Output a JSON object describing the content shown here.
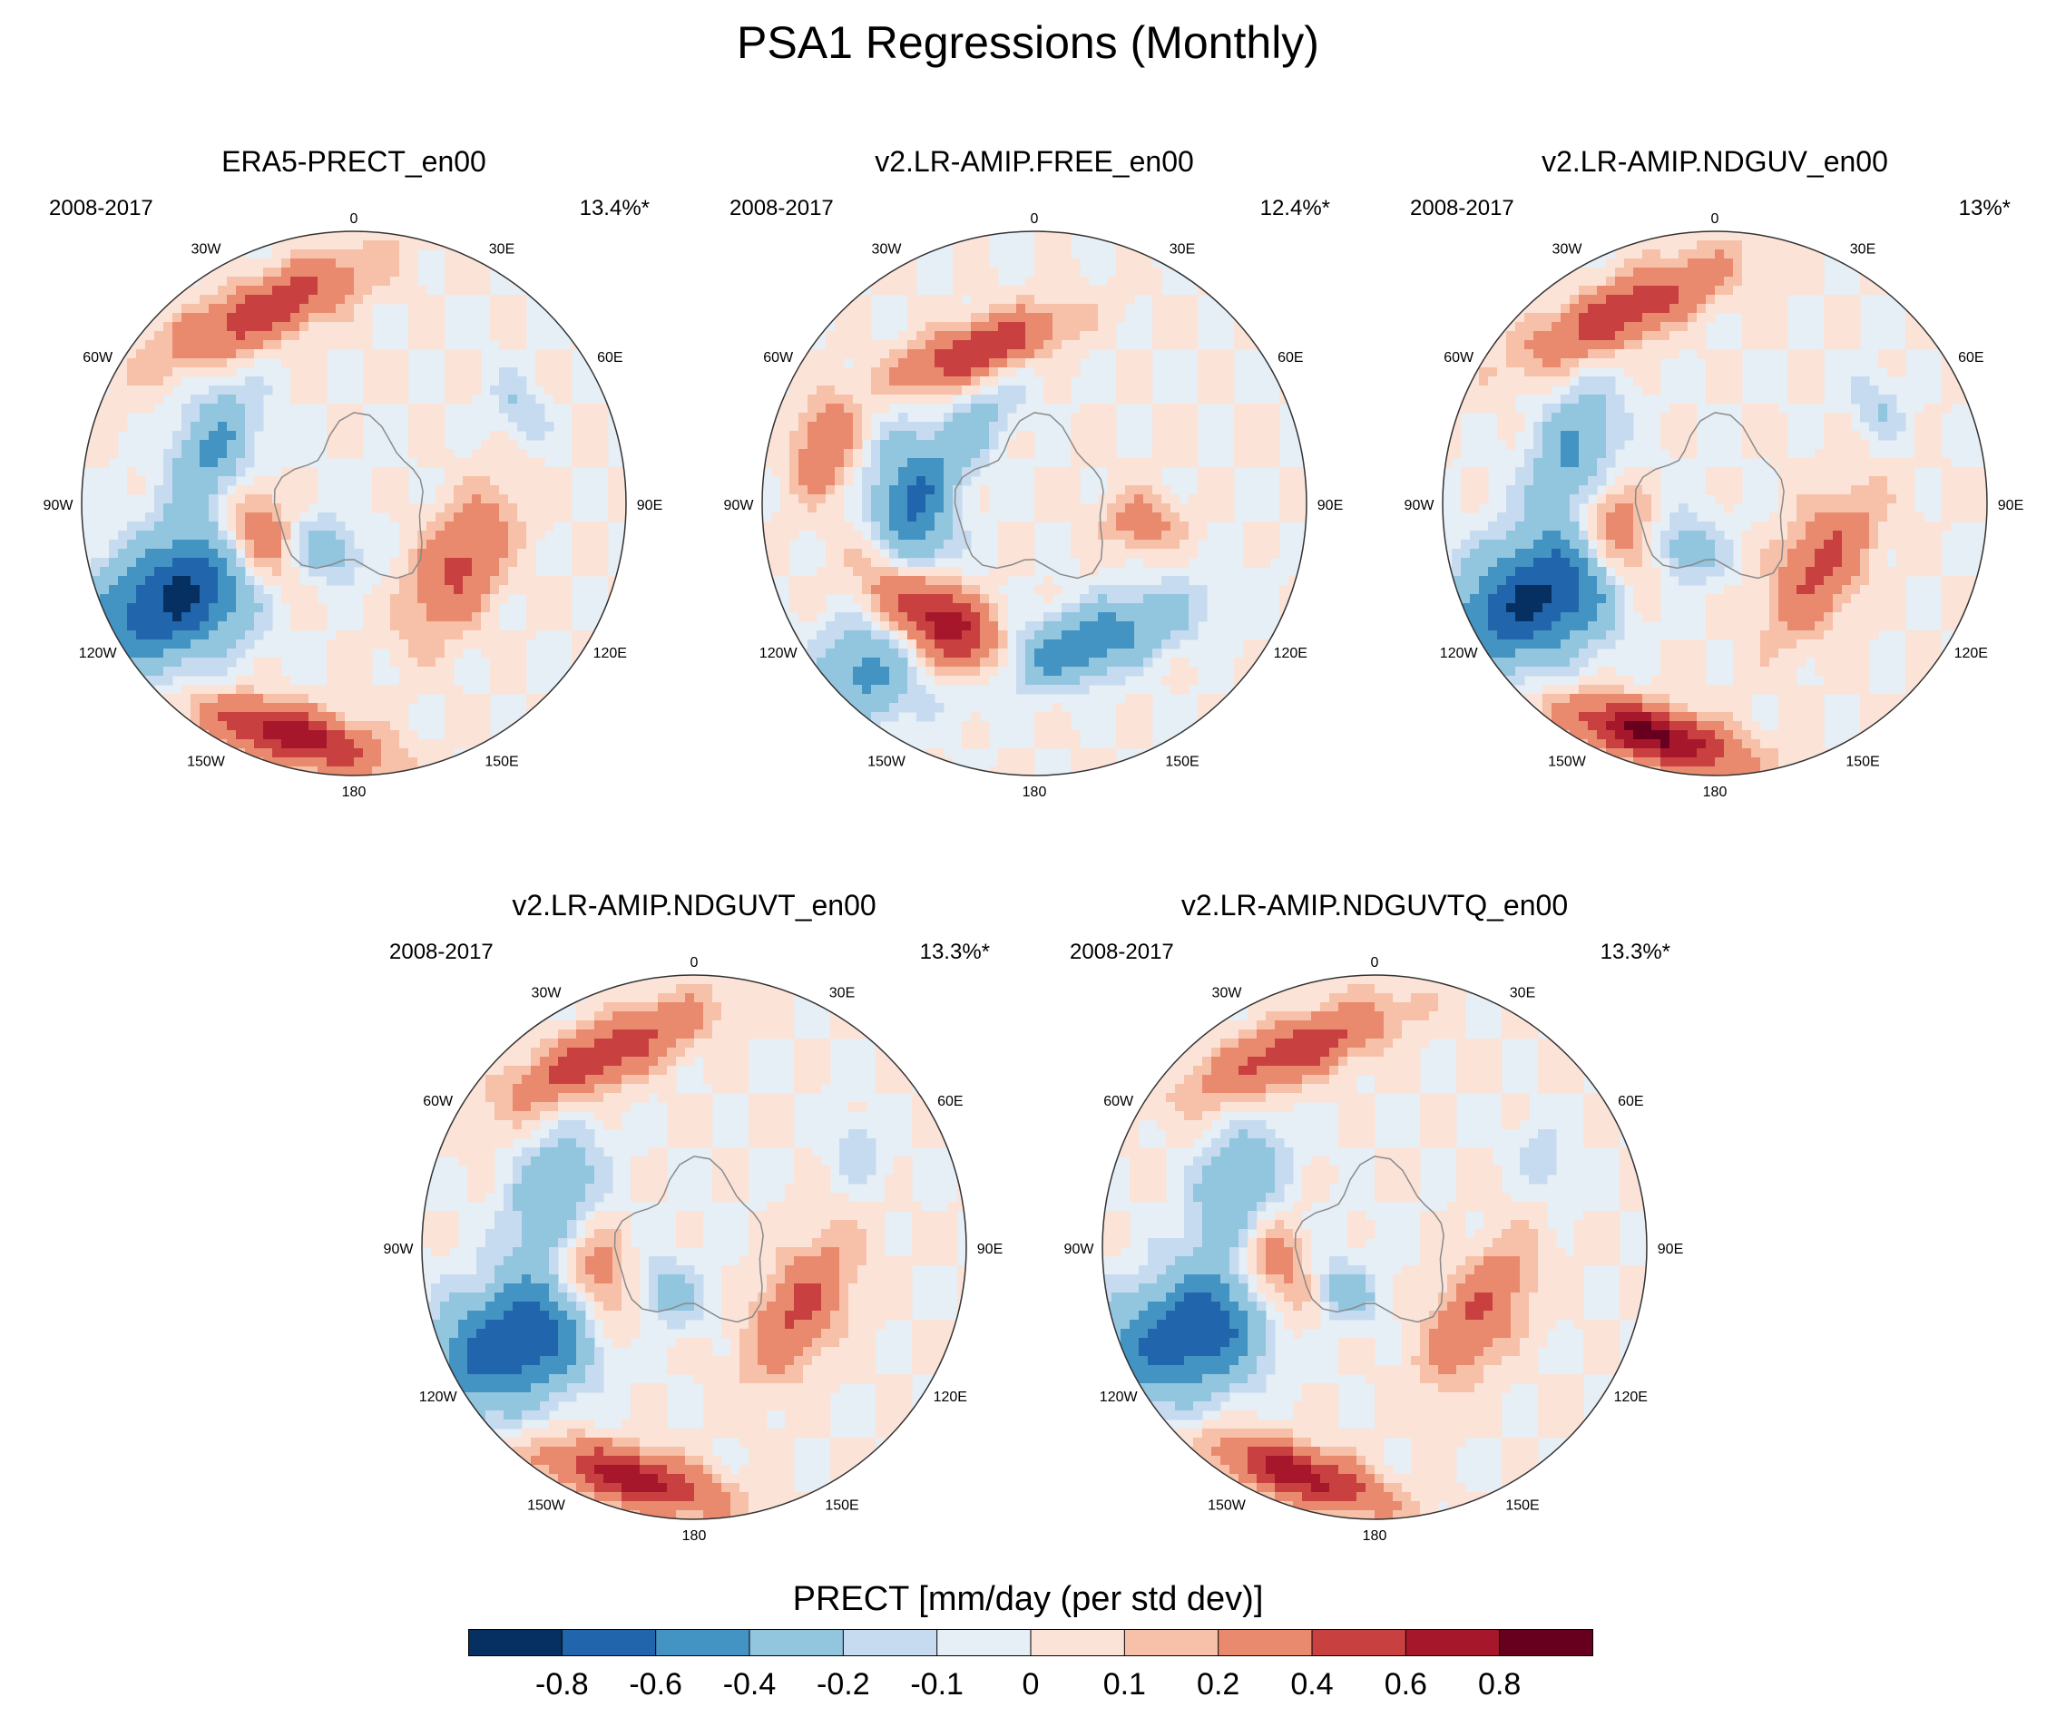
{
  "title": "PSA1 Regressions (Monthly)",
  "chart_data": {
    "type": "heatmap",
    "projection": "south polar stereographic",
    "variable": "PRECT",
    "colorbar": {
      "label": "PRECT [mm/day (per std dev)]",
      "levels": [
        -0.8,
        -0.6,
        -0.4,
        -0.2,
        -0.1,
        0,
        0.1,
        0.2,
        0.4,
        0.6,
        0.8
      ],
      "tick_labels": [
        "-0.8",
        "-0.6",
        "-0.4",
        "-0.2",
        "-0.1",
        "0",
        "0.1",
        "0.2",
        "0.4",
        "0.6",
        "0.8"
      ],
      "colors": [
        "#053061",
        "#2166ac",
        "#4393c3",
        "#92c5de",
        "#c6dbef",
        "#e6eff6",
        "#fbe3d8",
        "#f6c1a8",
        "#e98a6f",
        "#c8403f",
        "#a7172b",
        "#67001f"
      ]
    },
    "longitude_labels": [
      "0",
      "30E",
      "60E",
      "90E",
      "120E",
      "150E",
      "180",
      "150W",
      "120W",
      "90W",
      "60W",
      "30W"
    ],
    "panels": [
      {
        "title": "ERA5-PRECT_en00",
        "period": "2008-2017",
        "variance_explained": "13.4%*"
      },
      {
        "title": "v2.LR-AMIP.FREE_en00",
        "period": "2008-2017",
        "variance_explained": "12.4%*"
      },
      {
        "title": "v2.LR-AMIP.NDGUV_en00",
        "period": "2008-2017",
        "variance_explained": "13%*"
      },
      {
        "title": "v2.LR-AMIP.NDGUVT_en00",
        "period": "2008-2017",
        "variance_explained": "13.3%*"
      },
      {
        "title": "v2.LR-AMIP.NDGUVTQ_en00",
        "period": "2008-2017",
        "variance_explained": "13.3%*"
      }
    ]
  }
}
